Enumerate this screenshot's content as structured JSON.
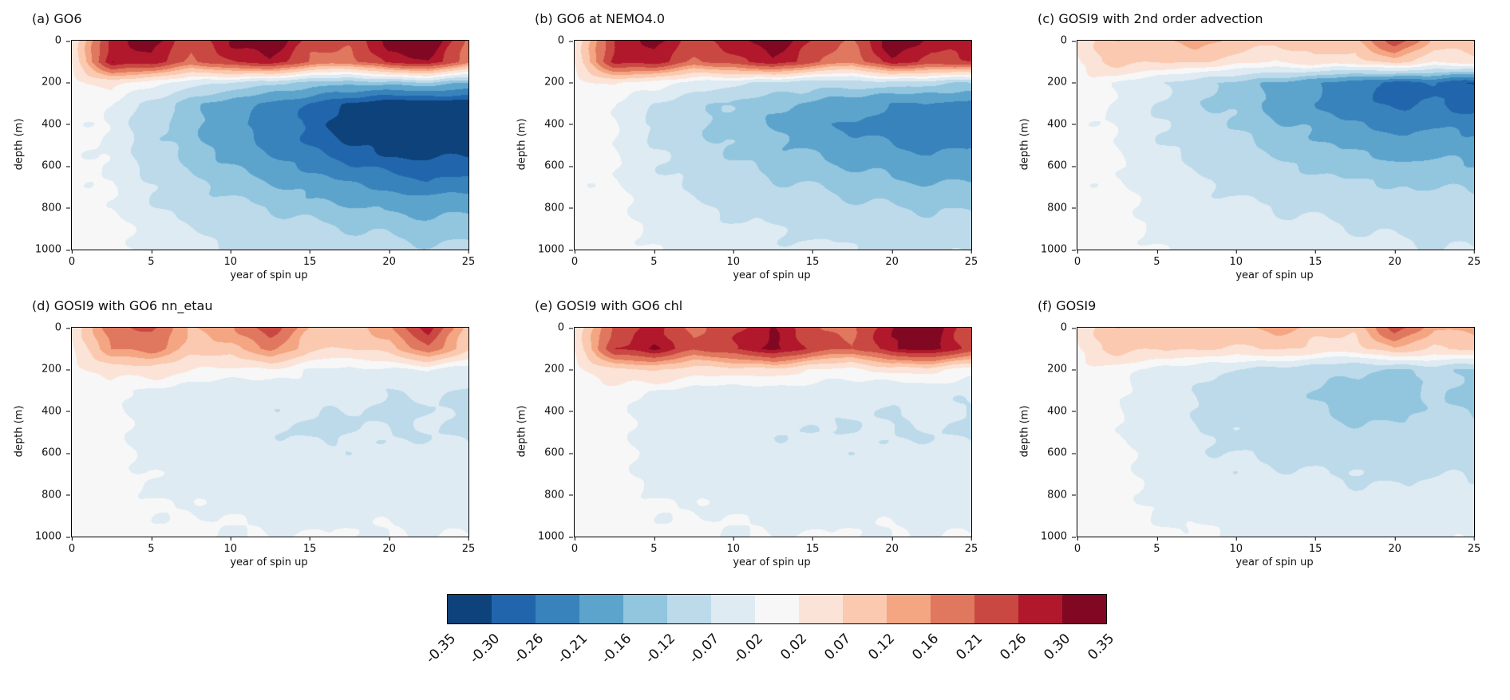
{
  "figure": {
    "background": "#ffffff",
    "text_color": "#111111"
  },
  "chart_data": {
    "type": "heatmap",
    "layout": "2 rows x 3 columns of filled-contour depth-time sections with shared horizontal colorbar",
    "xlabel": "year of spin up",
    "ylabel": "depth (m)",
    "x_range": [
      0,
      25
    ],
    "x_ticks": [
      0,
      5,
      10,
      15,
      20,
      25
    ],
    "depth_range": [
      0,
      1000
    ],
    "y_ticks": [
      0,
      200,
      400,
      600,
      800,
      1000
    ],
    "x": [
      0,
      2.5,
      5,
      7.5,
      10,
      12.5,
      15,
      17.5,
      20,
      22.5,
      25
    ],
    "depths": [
      0,
      100,
      200,
      300,
      400,
      500,
      600,
      700,
      800,
      900,
      1000
    ],
    "levels": [
      -0.35,
      -0.3,
      -0.26,
      -0.21,
      -0.16,
      -0.12,
      -0.07,
      -0.02,
      0.02,
      0.07,
      0.12,
      0.16,
      0.21,
      0.26,
      0.3,
      0.35
    ],
    "level_labels": [
      "-0.35",
      "-0.30",
      "-0.26",
      "-0.21",
      "-0.16",
      "-0.12",
      "-0.07",
      "-0.02",
      "0.02",
      "0.07",
      "0.12",
      "0.16",
      "0.21",
      "0.26",
      "0.30",
      "0.35"
    ],
    "colors": [
      "#0e427a",
      "#2166ac",
      "#3883bb",
      "#5da4cc",
      "#92c5de",
      "#bcdaea",
      "#deebf2",
      "#f7f7f7",
      "#fbe4d7",
      "#fac9b0",
      "#f4a582",
      "#e0775f",
      "#ca4842",
      "#b2182b",
      "#800823"
    ],
    "colorbar_position": "bottom",
    "panels": [
      {
        "id": "a",
        "title": "(a) GO6",
        "values": [
          [
            0.02,
            0.28,
            0.33,
            0.22,
            0.3,
            0.34,
            0.24,
            0.22,
            0.32,
            0.36,
            0.2
          ],
          [
            0.03,
            0.3,
            0.28,
            0.2,
            0.26,
            0.3,
            0.2,
            0.18,
            0.28,
            0.3,
            0.18
          ],
          [
            0.0,
            0.04,
            0.0,
            -0.05,
            -0.08,
            -0.1,
            -0.13,
            -0.15,
            -0.14,
            -0.12,
            -0.16
          ],
          [
            0.0,
            -0.02,
            -0.09,
            -0.14,
            -0.18,
            -0.22,
            -0.26,
            -0.3,
            -0.33,
            -0.34,
            -0.33
          ],
          [
            0.0,
            -0.03,
            -0.11,
            -0.15,
            -0.19,
            -0.24,
            -0.28,
            -0.32,
            -0.34,
            -0.37,
            -0.38
          ],
          [
            0.0,
            -0.03,
            -0.1,
            -0.14,
            -0.18,
            -0.22,
            -0.26,
            -0.3,
            -0.32,
            -0.33,
            -0.32
          ],
          [
            0.0,
            -0.03,
            -0.09,
            -0.13,
            -0.16,
            -0.19,
            -0.22,
            -0.25,
            -0.28,
            -0.29,
            -0.28
          ],
          [
            0.0,
            -0.02,
            -0.07,
            -0.11,
            -0.13,
            -0.15,
            -0.18,
            -0.2,
            -0.22,
            -0.24,
            -0.23
          ],
          [
            0.0,
            -0.02,
            -0.06,
            -0.09,
            -0.11,
            -0.12,
            -0.14,
            -0.16,
            -0.17,
            -0.18,
            -0.17
          ],
          [
            0.0,
            -0.01,
            -0.04,
            -0.07,
            -0.09,
            -0.1,
            -0.11,
            -0.12,
            -0.13,
            -0.14,
            -0.13
          ],
          [
            0.0,
            -0.01,
            -0.03,
            -0.05,
            -0.07,
            -0.08,
            -0.09,
            -0.1,
            -0.11,
            -0.11,
            -0.11
          ]
        ]
      },
      {
        "id": "b",
        "title": "(b) GO6 at NEMO4.0",
        "values": [
          [
            0.02,
            0.26,
            0.32,
            0.24,
            0.28,
            0.33,
            0.26,
            0.2,
            0.34,
            0.28,
            0.3
          ],
          [
            0.03,
            0.28,
            0.28,
            0.2,
            0.24,
            0.3,
            0.22,
            0.16,
            0.3,
            0.24,
            0.26
          ],
          [
            0.0,
            0.03,
            0.0,
            -0.04,
            -0.06,
            -0.08,
            -0.1,
            -0.1,
            -0.09,
            -0.1,
            -0.12
          ],
          [
            0.0,
            -0.02,
            -0.07,
            -0.1,
            -0.13,
            -0.15,
            -0.17,
            -0.19,
            -0.21,
            -0.22,
            -0.22
          ],
          [
            0.0,
            -0.02,
            -0.08,
            -0.11,
            -0.14,
            -0.16,
            -0.19,
            -0.22,
            -0.24,
            -0.25,
            -0.24
          ],
          [
            0.0,
            -0.02,
            -0.07,
            -0.1,
            -0.13,
            -0.15,
            -0.17,
            -0.19,
            -0.21,
            -0.22,
            -0.21
          ],
          [
            0.0,
            -0.02,
            -0.06,
            -0.09,
            -0.11,
            -0.13,
            -0.15,
            -0.16,
            -0.18,
            -0.19,
            -0.18
          ],
          [
            0.0,
            -0.02,
            -0.05,
            -0.08,
            -0.09,
            -0.11,
            -0.12,
            -0.13,
            -0.15,
            -0.15,
            -0.15
          ],
          [
            0.0,
            -0.01,
            -0.04,
            -0.06,
            -0.08,
            -0.09,
            -0.1,
            -0.11,
            -0.12,
            -0.12,
            -0.12
          ],
          [
            0.0,
            -0.01,
            -0.03,
            -0.05,
            -0.06,
            -0.07,
            -0.08,
            -0.09,
            -0.09,
            -0.1,
            -0.1
          ],
          [
            0.0,
            -0.01,
            -0.02,
            -0.04,
            -0.05,
            -0.06,
            -0.06,
            -0.07,
            -0.08,
            -0.08,
            -0.08
          ]
        ]
      },
      {
        "id": "c",
        "title": "(c) GOSI9 with 2nd order advection",
        "values": [
          [
            0.02,
            0.12,
            0.1,
            0.15,
            0.1,
            0.08,
            0.12,
            0.1,
            0.25,
            0.1,
            0.12
          ],
          [
            0.02,
            0.1,
            0.06,
            0.08,
            0.04,
            0.02,
            0.05,
            0.04,
            0.1,
            0.02,
            0.05
          ],
          [
            0.0,
            -0.02,
            -0.06,
            -0.1,
            -0.14,
            -0.16,
            -0.2,
            -0.24,
            -0.28,
            -0.26,
            -0.3
          ],
          [
            0.0,
            -0.03,
            -0.07,
            -0.11,
            -0.14,
            -0.17,
            -0.21,
            -0.25,
            -0.27,
            -0.26,
            -0.28
          ],
          [
            0.0,
            -0.03,
            -0.07,
            -0.1,
            -0.12,
            -0.15,
            -0.18,
            -0.21,
            -0.23,
            -0.22,
            -0.23
          ],
          [
            0.0,
            -0.02,
            -0.06,
            -0.09,
            -0.11,
            -0.13,
            -0.15,
            -0.17,
            -0.19,
            -0.18,
            -0.19
          ],
          [
            0.0,
            -0.02,
            -0.05,
            -0.08,
            -0.1,
            -0.11,
            -0.13,
            -0.14,
            -0.15,
            -0.15,
            -0.16
          ],
          [
            0.0,
            -0.02,
            -0.04,
            -0.06,
            -0.08,
            -0.09,
            -0.1,
            -0.11,
            -0.12,
            -0.12,
            -0.13
          ],
          [
            0.0,
            -0.01,
            -0.03,
            -0.05,
            -0.06,
            -0.07,
            -0.08,
            -0.09,
            -0.1,
            -0.1,
            -0.1
          ],
          [
            0.0,
            -0.01,
            -0.03,
            -0.04,
            -0.05,
            -0.06,
            -0.06,
            -0.07,
            -0.08,
            -0.08,
            -0.08
          ],
          [
            0.0,
            -0.01,
            -0.02,
            -0.03,
            -0.04,
            -0.05,
            -0.05,
            -0.06,
            -0.06,
            -0.07,
            -0.07
          ]
        ]
      },
      {
        "id": "d",
        "title": "(d) GOSI9 with GO6 nn_etau",
        "values": [
          [
            0.02,
            0.2,
            0.22,
            0.12,
            0.15,
            0.24,
            0.12,
            0.1,
            0.15,
            0.28,
            0.1
          ],
          [
            0.02,
            0.16,
            0.18,
            0.1,
            0.1,
            0.18,
            0.08,
            0.06,
            0.1,
            0.2,
            0.08
          ],
          [
            0.0,
            0.04,
            0.05,
            0.02,
            0.0,
            0.02,
            -0.02,
            -0.03,
            -0.03,
            -0.02,
            -0.04
          ],
          [
            0.0,
            -0.01,
            -0.03,
            -0.04,
            -0.05,
            -0.05,
            -0.06,
            -0.06,
            -0.07,
            -0.06,
            -0.07
          ],
          [
            0.0,
            -0.01,
            -0.03,
            -0.05,
            -0.05,
            -0.06,
            -0.07,
            -0.07,
            -0.08,
            -0.07,
            -0.08
          ],
          [
            0.0,
            -0.01,
            -0.03,
            -0.05,
            -0.06,
            -0.06,
            -0.08,
            -0.07,
            -0.07,
            -0.07,
            -0.07
          ],
          [
            0.0,
            -0.01,
            -0.03,
            -0.04,
            -0.05,
            -0.05,
            -0.06,
            -0.06,
            -0.06,
            -0.06,
            -0.06
          ],
          [
            0.0,
            -0.01,
            -0.02,
            -0.04,
            -0.04,
            -0.05,
            -0.05,
            -0.05,
            -0.05,
            -0.05,
            -0.05
          ],
          [
            0.0,
            -0.01,
            -0.02,
            -0.03,
            -0.03,
            -0.04,
            -0.04,
            -0.04,
            -0.04,
            -0.04,
            -0.04
          ],
          [
            0.0,
            0.0,
            -0.01,
            -0.02,
            -0.02,
            -0.03,
            -0.03,
            -0.03,
            -0.03,
            -0.03,
            -0.03
          ],
          [
            0.0,
            0.0,
            -0.01,
            -0.01,
            -0.02,
            -0.02,
            -0.02,
            -0.02,
            -0.02,
            -0.02,
            -0.02
          ]
        ]
      },
      {
        "id": "e",
        "title": "(e) GOSI9 with GO6 chl",
        "values": [
          [
            0.02,
            0.22,
            0.28,
            0.2,
            0.24,
            0.3,
            0.22,
            0.2,
            0.3,
            0.34,
            0.22
          ],
          [
            0.03,
            0.26,
            0.3,
            0.22,
            0.26,
            0.32,
            0.24,
            0.2,
            0.3,
            0.32,
            0.24
          ],
          [
            0.0,
            0.06,
            0.08,
            0.04,
            0.04,
            0.06,
            0.02,
            0.0,
            0.04,
            0.04,
            0.0
          ],
          [
            0.0,
            0.0,
            -0.02,
            -0.03,
            -0.04,
            -0.04,
            -0.05,
            -0.05,
            -0.06,
            -0.05,
            -0.06
          ],
          [
            0.0,
            -0.01,
            -0.03,
            -0.04,
            -0.05,
            -0.05,
            -0.06,
            -0.06,
            -0.07,
            -0.06,
            -0.07
          ],
          [
            0.0,
            -0.01,
            -0.03,
            -0.05,
            -0.06,
            -0.06,
            -0.07,
            -0.07,
            -0.07,
            -0.07,
            -0.07
          ],
          [
            0.0,
            -0.01,
            -0.03,
            -0.05,
            -0.05,
            -0.06,
            -0.06,
            -0.06,
            -0.06,
            -0.06,
            -0.06
          ],
          [
            0.0,
            -0.01,
            -0.03,
            -0.04,
            -0.04,
            -0.05,
            -0.05,
            -0.05,
            -0.05,
            -0.05,
            -0.05
          ],
          [
            0.0,
            -0.01,
            -0.02,
            -0.03,
            -0.03,
            -0.04,
            -0.04,
            -0.04,
            -0.04,
            -0.04,
            -0.04
          ],
          [
            0.0,
            0.0,
            -0.01,
            -0.02,
            -0.02,
            -0.03,
            -0.03,
            -0.03,
            -0.03,
            -0.03,
            -0.03
          ],
          [
            0.0,
            0.0,
            -0.01,
            -0.01,
            -0.02,
            -0.02,
            -0.02,
            -0.02,
            -0.02,
            -0.02,
            -0.02
          ]
        ]
      },
      {
        "id": "f",
        "title": "(f) GOSI9",
        "values": [
          [
            0.02,
            0.12,
            0.1,
            0.12,
            0.1,
            0.14,
            0.1,
            0.08,
            0.24,
            0.12,
            0.14
          ],
          [
            0.02,
            0.1,
            0.06,
            0.08,
            0.06,
            0.08,
            0.05,
            0.04,
            0.12,
            0.06,
            0.08
          ],
          [
            0.0,
            0.0,
            -0.03,
            -0.05,
            -0.08,
            -0.09,
            -0.1,
            -0.12,
            -0.13,
            -0.1,
            -0.12
          ],
          [
            0.0,
            -0.01,
            -0.04,
            -0.07,
            -0.1,
            -0.11,
            -0.12,
            -0.14,
            -0.14,
            -0.12,
            -0.13
          ],
          [
            0.0,
            -0.02,
            -0.05,
            -0.07,
            -0.09,
            -0.1,
            -0.11,
            -0.13,
            -0.13,
            -0.11,
            -0.12
          ],
          [
            0.0,
            -0.02,
            -0.05,
            -0.07,
            -0.08,
            -0.09,
            -0.1,
            -0.11,
            -0.11,
            -0.1,
            -0.11
          ],
          [
            0.0,
            -0.01,
            -0.04,
            -0.06,
            -0.07,
            -0.08,
            -0.08,
            -0.09,
            -0.09,
            -0.09,
            -0.09
          ],
          [
            0.0,
            -0.01,
            -0.03,
            -0.05,
            -0.06,
            -0.06,
            -0.07,
            -0.07,
            -0.08,
            -0.07,
            -0.08
          ],
          [
            0.0,
            -0.01,
            -0.03,
            -0.04,
            -0.05,
            -0.05,
            -0.05,
            -0.06,
            -0.06,
            -0.06,
            -0.06
          ],
          [
            0.0,
            -0.01,
            -0.02,
            -0.03,
            -0.03,
            -0.04,
            -0.04,
            -0.04,
            -0.04,
            -0.04,
            -0.04
          ],
          [
            0.0,
            0.0,
            -0.01,
            -0.02,
            -0.02,
            -0.03,
            -0.03,
            -0.03,
            -0.03,
            -0.03,
            -0.03
          ]
        ]
      }
    ]
  }
}
